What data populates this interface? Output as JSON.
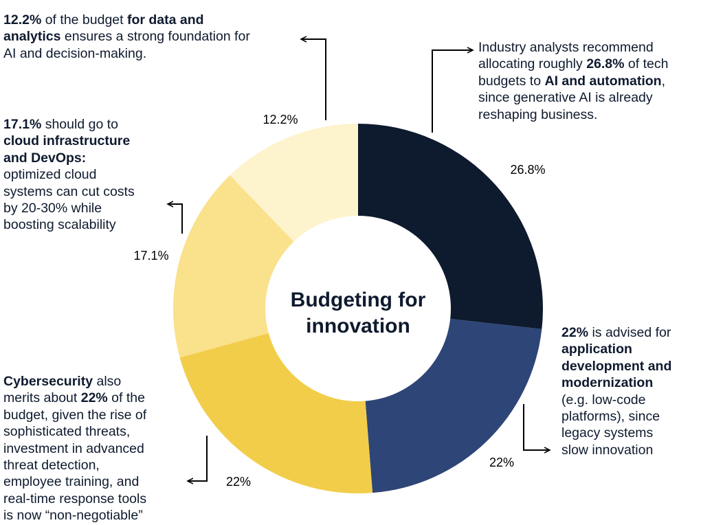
{
  "chart_data": {
    "type": "pie",
    "donut": true,
    "title": "Budgeting for innovation",
    "title_lines": [
      "Budgeting for",
      "innovation"
    ],
    "start": "top, clockwise",
    "slices": [
      {
        "value": 26.8,
        "label": "26.8%",
        "color": "#0e1a2e"
      },
      {
        "value": 22,
        "label": "22%",
        "color": "#2e4577"
      },
      {
        "value": 22,
        "label": "22%",
        "color": "#f2cd4a"
      },
      {
        "value": 17.1,
        "label": "17.1%",
        "color": "#fae18b"
      },
      {
        "value": 12.2,
        "label": "12.2%",
        "color": "#fdf3cd"
      }
    ]
  },
  "annotations": {
    "data_analytics": [
      [
        {
          "t": "12.2%",
          "b": true
        },
        {
          "t": " of the budget "
        },
        {
          "t": "for data and",
          "b": true
        }
      ],
      [
        {
          "t": "analytics",
          "b": true
        },
        {
          "t": " ensures a strong foundation for"
        }
      ],
      [
        {
          "t": "AI and decision-making."
        }
      ]
    ],
    "ai_automation": [
      [
        {
          "t": "Industry analysts recommend"
        }
      ],
      [
        {
          "t": "allocating roughly "
        },
        {
          "t": "26.8%",
          "b": true
        },
        {
          "t": " of tech"
        }
      ],
      [
        {
          "t": "budgets to "
        },
        {
          "t": "AI and automation",
          "b": true
        },
        {
          "t": ","
        }
      ],
      [
        {
          "t": "since generative AI is already"
        }
      ],
      [
        {
          "t": "reshaping business."
        }
      ]
    ],
    "cloud_devops": [
      [
        {
          "t": "17.1%",
          "b": true
        },
        {
          "t": " should go to"
        }
      ],
      [
        {
          "t": "cloud infrastructure",
          "b": true
        }
      ],
      [
        {
          "t": "and DevOps:",
          "b": true
        }
      ],
      [
        {
          "t": "optimized cloud"
        }
      ],
      [
        {
          "t": "systems can cut costs"
        }
      ],
      [
        {
          "t": "by 20-30% while"
        }
      ],
      [
        {
          "t": "boosting scalability"
        }
      ]
    ],
    "cybersecurity": [
      [
        {
          "t": "Cybersecurity",
          "b": true
        },
        {
          "t": " also"
        }
      ],
      [
        {
          "t": "merits about "
        },
        {
          "t": "22%",
          "b": true
        },
        {
          "t": " of the"
        }
      ],
      [
        {
          "t": "budget, given the rise of"
        }
      ],
      [
        {
          "t": "sophisticated threats,"
        }
      ],
      [
        {
          "t": "investment in advanced"
        }
      ],
      [
        {
          "t": "threat detection,"
        }
      ],
      [
        {
          "t": "employee training, and"
        }
      ],
      [
        {
          "t": "real-time response tools"
        }
      ],
      [
        {
          "t": "is now “non-negotiable”"
        }
      ]
    ],
    "app_development": [
      [
        {
          "t": "22%",
          "b": true
        },
        {
          "t": " is advised for"
        }
      ],
      [
        {
          "t": "application",
          "b": true
        }
      ],
      [
        {
          "t": "development and",
          "b": true
        }
      ],
      [
        {
          "t": "modernization",
          "b": true
        }
      ],
      [
        {
          "t": "(e.g. low-code"
        }
      ],
      [
        {
          "t": "platforms), since"
        }
      ],
      [
        {
          "t": "legacy systems"
        }
      ],
      [
        {
          "t": "slow innovation"
        }
      ]
    ]
  }
}
